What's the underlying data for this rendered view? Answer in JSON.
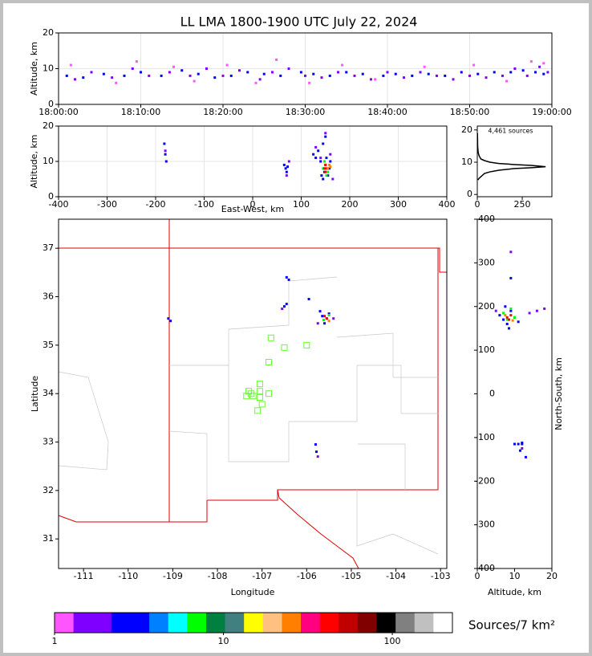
{
  "chart_data": [
    {
      "type": "scatter",
      "title": "LL LMA 1800-1900 UTC July 22, 2024",
      "ylabel": "Altitude, km",
      "grid": true,
      "xlim": [
        0,
        60
      ],
      "xticks": [
        {
          "value": 0,
          "label": "18:00:00"
        },
        {
          "value": 10,
          "label": "18:10:00"
        },
        {
          "value": 20,
          "label": "18:20:00"
        },
        {
          "value": 30,
          "label": "18:30:00"
        },
        {
          "value": 40,
          "label": "18:40:00"
        },
        {
          "value": 50,
          "label": "18:50:00"
        },
        {
          "value": 60,
          "label": "19:00:00"
        }
      ],
      "ylim": [
        0,
        20
      ],
      "yticks": [
        0,
        10,
        20
      ],
      "series": [
        {
          "color": "#0000ff",
          "x": [
            1,
            3,
            5.5,
            8,
            10,
            12.5,
            15,
            17,
            19,
            21,
            23,
            25,
            27,
            29.5,
            31,
            33,
            35,
            37,
            39.5,
            41,
            43,
            45,
            47,
            49,
            51,
            53,
            55,
            56.5,
            58,
            59
          ],
          "values": [
            8,
            7.5,
            8.5,
            8,
            9,
            8,
            9.5,
            8.5,
            7.5,
            8,
            9,
            8.5,
            8,
            9,
            8.5,
            8,
            9,
            8.5,
            8,
            8.5,
            8,
            8.5,
            8,
            9,
            8.5,
            9,
            9,
            9.5,
            9,
            8.5
          ]
        },
        {
          "color": "#8000ff",
          "x": [
            2,
            4,
            6.5,
            9,
            11,
            13.5,
            16,
            18,
            20,
            22,
            24.5,
            26,
            28,
            30,
            32,
            34,
            36,
            38,
            40,
            42,
            44,
            46,
            48,
            50,
            52,
            54,
            55.5,
            57,
            58.5,
            59.5
          ],
          "values": [
            7,
            9,
            7.5,
            10,
            8,
            9,
            8,
            10,
            8,
            9.5,
            7,
            9,
            10,
            8,
            7.5,
            9,
            8,
            7,
            9,
            7.5,
            9,
            8,
            7,
            8,
            7.5,
            8,
            10,
            8,
            10.5,
            9
          ]
        },
        {
          "color": "#ff55ff",
          "x": [
            1.5,
            7,
            9.5,
            14,
            16.5,
            20.5,
            24,
            26.5,
            30.5,
            34.5,
            38.5,
            44.5,
            50.5,
            54.5,
            57.5,
            59
          ],
          "values": [
            11,
            6,
            12,
            10.5,
            6.5,
            11,
            6,
            12.5,
            6,
            11,
            7,
            10.5,
            11,
            6.5,
            12,
            11.5
          ]
        }
      ]
    },
    {
      "type": "scatter",
      "xlabel": "East-West, km",
      "ylabel": "Altitude, km",
      "grid": true,
      "xlim": [
        -400,
        400
      ],
      "xticks": [
        -400,
        -300,
        -200,
        -100,
        0,
        100,
        200,
        300,
        400
      ],
      "ylim": [
        0,
        20
      ],
      "yticks": [
        0,
        10,
        20
      ],
      "series": [
        {
          "color": "#0000ff",
          "x": [
            -182,
            -180,
            -178,
            65,
            68,
            70,
            72,
            125,
            130,
            135,
            140,
            142,
            145,
            148,
            150,
            152,
            155,
            158,
            160,
            145,
            150
          ],
          "values": [
            15,
            12,
            10,
            9,
            8,
            7,
            8.5,
            12,
            11,
            13,
            10,
            6,
            5,
            7,
            9,
            11,
            6,
            8,
            10,
            15,
            17
          ]
        },
        {
          "color": "#00ff00",
          "x": [
            145,
            150,
            155,
            148,
            152
          ],
          "values": [
            8,
            9,
            7,
            10,
            6
          ]
        },
        {
          "color": "#ff0000",
          "x": [
            148,
            150,
            152,
            150
          ],
          "values": [
            8,
            9,
            8,
            7
          ]
        },
        {
          "color": "#ff8000",
          "x": [
            155,
            158,
            160
          ],
          "values": [
            8,
            9,
            8.5
          ]
        },
        {
          "color": "#8000ff",
          "x": [
            -180,
            70,
            75,
            130,
            140,
            160,
            165,
            150
          ],
          "values": [
            13,
            6,
            10,
            14,
            11,
            12,
            5,
            18
          ]
        }
      ]
    },
    {
      "type": "line",
      "annotation": "4,461 sources",
      "xlim": [
        0,
        415
      ],
      "xticks": [
        0,
        250
      ],
      "ylim": [
        -0.7,
        21.2
      ],
      "yticks": [
        0,
        10,
        20
      ],
      "series": [
        {
          "color": "#000000",
          "x": [
            3,
            10,
            20,
            40,
            70,
            120,
            200,
            300,
            380,
            300,
            200,
            120,
            70,
            40,
            20,
            10,
            5,
            2,
            1
          ],
          "values": [
            4.5,
            5,
            5.5,
            6.5,
            7,
            7.5,
            8,
            8.3,
            8.6,
            9,
            9.3,
            9.6,
            10,
            10.5,
            11,
            12,
            13,
            15,
            19
          ]
        }
      ]
    },
    {
      "type": "scatter",
      "xlabel": "Longitude",
      "ylabel": "Latitude",
      "xlim": [
        -111.56,
        -102.86
      ],
      "xticks": [
        -111,
        -110,
        -109,
        -108,
        -107,
        -106,
        -105,
        -104,
        -103
      ],
      "ylim": [
        30.39,
        37.6
      ],
      "yticks": [
        31,
        32,
        33,
        34,
        35,
        36,
        37
      ],
      "series": [
        {
          "color": "#0000ff",
          "x": [
            -109.1,
            -109.05,
            -106.45,
            -106.4,
            -106.5,
            -106.45,
            -105.95,
            -105.65,
            -105.6,
            -105.55,
            -105.7,
            -105.5,
            -105.8,
            -105.78
          ],
          "values": [
            35.55,
            35.5,
            36.4,
            36.35,
            35.8,
            35.85,
            35.95,
            35.6,
            35.45,
            35.55,
            35.7,
            35.65,
            32.95,
            32.8
          ]
        },
        {
          "color": "#00ff00",
          "x": [
            -105.62,
            -105.5
          ],
          "values": [
            35.52,
            35.62
          ]
        },
        {
          "color": "#ff0000",
          "x": [
            -105.6,
            -105.55
          ],
          "values": [
            35.6,
            35.55
          ]
        },
        {
          "color": "#ff8000",
          "x": [
            -105.5
          ],
          "values": [
            35.5
          ]
        },
        {
          "color": "#8000ff",
          "x": [
            -105.4,
            -105.75,
            -106.55,
            -105.75
          ],
          "values": [
            35.55,
            35.45,
            35.75,
            32.7
          ]
        },
        {
          "color": "#66ff33",
          "marker": "square-open",
          "x": [
            -106.8,
            -106.5,
            -106.0,
            -106.85,
            -107.3,
            -107.35,
            -107.2,
            -107.05,
            -107.05,
            -107.05,
            -107.0,
            -107.1,
            -106.85,
            -107.25
          ],
          "values": [
            35.15,
            34.95,
            35.0,
            34.65,
            34.05,
            33.95,
            33.95,
            34.2,
            34.05,
            33.92,
            33.78,
            33.65,
            34.0,
            34.0
          ]
        }
      ]
    },
    {
      "type": "scatter",
      "xlabel": "Altitude, km",
      "ylabel": "North-South, km",
      "xlim": [
        0,
        20
      ],
      "xticks": [
        0,
        10,
        20
      ],
      "ylim": [
        -400,
        400
      ],
      "yticks": [
        -400,
        -300,
        -200,
        -100,
        0,
        100,
        200,
        300,
        400
      ],
      "series": [
        {
          "color": "#0000ff",
          "x": [
            6,
            7,
            8,
            9,
            10,
            11,
            7.5,
            8.5,
            9,
            12,
            10,
            11,
            12,
            13,
            11.5
          ],
          "values": [
            180,
            170,
            160,
            190,
            175,
            165,
            200,
            150,
            265,
            -115,
            -115,
            -115,
            -112,
            -145,
            -130
          ]
        },
        {
          "color": "#00ff00",
          "x": [
            7,
            8,
            9,
            10
          ],
          "values": [
            185,
            170,
            195,
            175
          ]
        },
        {
          "color": "#ff0000",
          "x": [
            8,
            8.5,
            9
          ],
          "values": [
            175,
            170,
            180
          ]
        },
        {
          "color": "#ff8000",
          "x": [
            7.5,
            9.5
          ],
          "values": [
            180,
            168
          ]
        },
        {
          "color": "#8000ff",
          "x": [
            5,
            14,
            16,
            18,
            9,
            12
          ],
          "values": [
            190,
            185,
            190,
            195,
            325,
            -125
          ]
        }
      ]
    },
    {
      "type": "colorbar",
      "label": "Sources/7 km²",
      "log": true,
      "clim": [
        1,
        227
      ],
      "ticks": [
        1,
        10,
        100
      ],
      "colors": [
        "#ff55ff",
        "#8000ff",
        "#8000ff",
        "#0000ff",
        "#0000ff",
        "#0080ff",
        "#00ffff",
        "#00ff00",
        "#008040",
        "#408080",
        "#ffff00",
        "#ffc080",
        "#ff8000",
        "#ff0080",
        "#ff0000",
        "#c00000",
        "#800000",
        "#000000",
        "#808080",
        "#c0c0c0",
        "#ffffff"
      ]
    }
  ]
}
